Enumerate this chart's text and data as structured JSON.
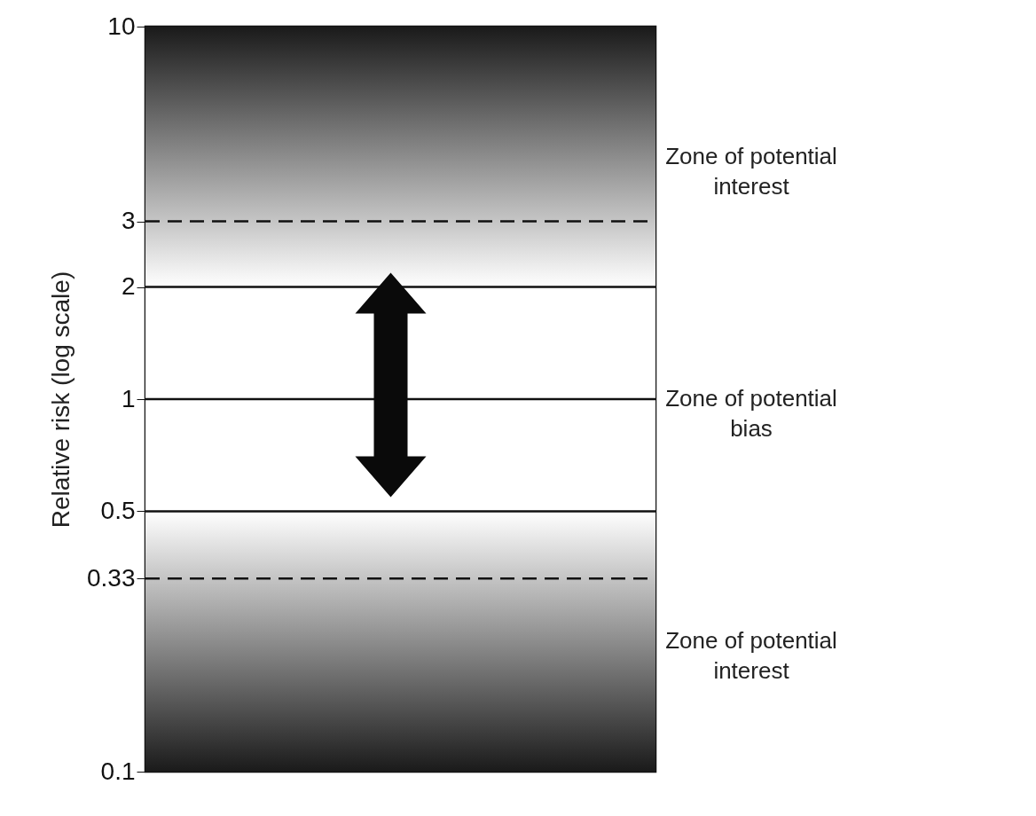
{
  "chart_data": {
    "type": "bar",
    "categories": [
      null
    ],
    "values": [
      null
    ],
    "ylabel": "Relative risk (log scale)",
    "log": "y",
    "ylim": [
      0.1,
      10
    ],
    "yticks": [
      0.1,
      0.33,
      0.5,
      1,
      2,
      3,
      10
    ],
    "bands": [
      {
        "axis": "y",
        "from": 2,
        "to": 10,
        "label": "Zone of potential interest",
        "color": "#1a1a1a"
      },
      {
        "axis": "y",
        "from": 0.5,
        "to": 2,
        "label": "Zone of potential bias",
        "color": "#ffffff"
      },
      {
        "axis": "y",
        "from": 0.1,
        "to": 0.5,
        "label": "Zone of potential interest",
        "color": "#1a1a1a"
      }
    ],
    "ref_lines": [
      {
        "axis": "y",
        "value": 3,
        "line_style": "dashed"
      },
      {
        "axis": "y",
        "value": 2,
        "line_style": "solid"
      },
      {
        "axis": "y",
        "value": 1,
        "line_style": "solid"
      },
      {
        "axis": "y",
        "value": 0.5,
        "line_style": "solid"
      },
      {
        "axis": "y",
        "value": 0.33,
        "line_style": "dashed"
      }
    ]
  }
}
